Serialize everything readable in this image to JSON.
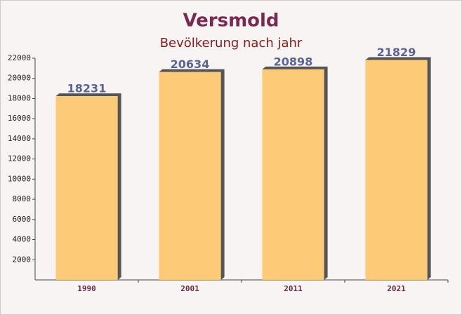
{
  "chart_data": {
    "type": "bar",
    "title": "Versmold",
    "subtitle": "Bevölkerung nach jahr",
    "categories": [
      "1990",
      "2001",
      "2011",
      "2021"
    ],
    "values": [
      18231,
      20634,
      20898,
      21829
    ],
    "color": "#fdc76a",
    "ylim": [
      0,
      22000
    ],
    "yticks": [
      2000,
      4000,
      6000,
      8000,
      10000,
      12000,
      14000,
      16000,
      18000,
      20000,
      22000
    ]
  }
}
